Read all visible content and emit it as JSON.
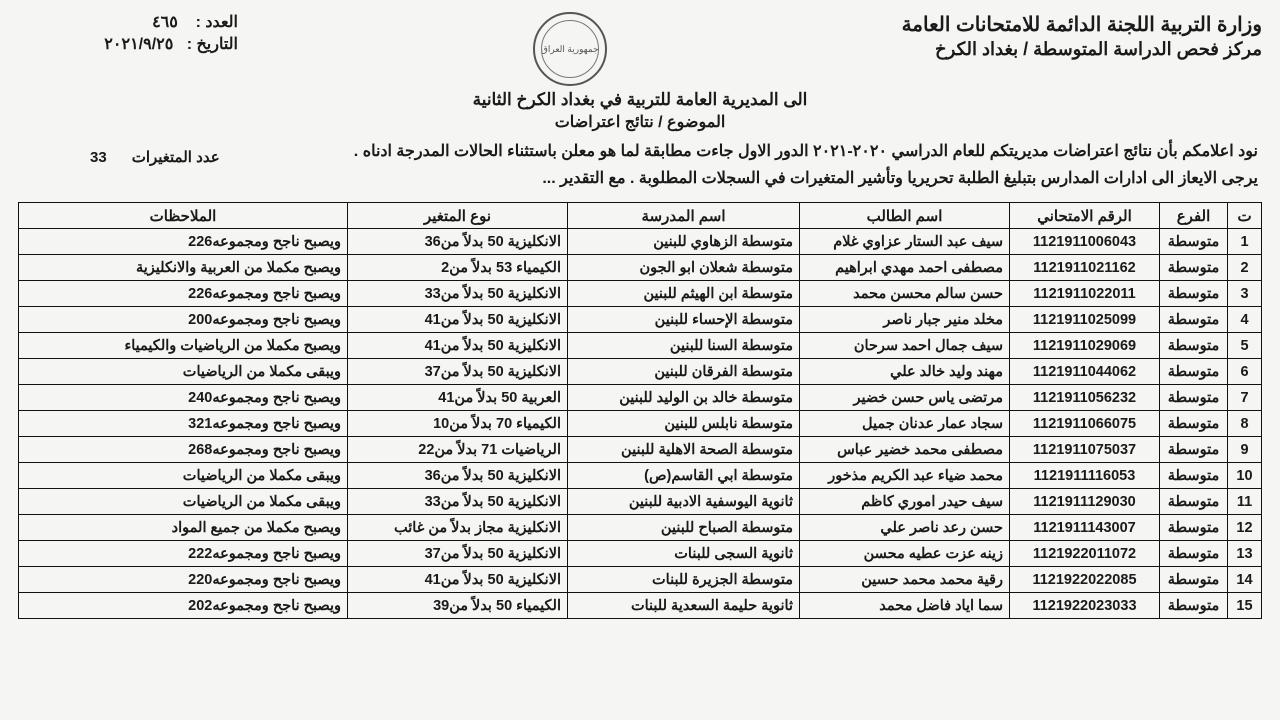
{
  "header": {
    "ministry": "وزارة التربية اللجنة الدائمة للامتحانات العامة",
    "center": "مركز فحص الدراسة المتوسطة / بغداد الكرخ",
    "number_label": "العدد :",
    "number_value": "٤٦٥",
    "date_label": "التاريخ :",
    "date_value": "٢٠٢١/٩/٢٥",
    "seal_text": "جمهورية العراق"
  },
  "subject": {
    "to": "الى المديرية العامة للتربية في بغداد الكرخ الثانية",
    "line": "الموضوع / نتائج اعتراضات",
    "count_label": "عدد المتغيرات",
    "count_value": "33"
  },
  "body": {
    "p1": "نود اعلامكم بأن نتائج اعتراضات مديريتكم للعام الدراسي ٢٠٢٠-٢٠٢١ الدور الاول جاءت مطابقة لما هو معلن باستثناء الحالات المدرجة ادناه .",
    "p2": "يرجى الايعاز الى ادارات المدارس بتبليغ الطلبة تحريريا وتأشير المتغيرات في السجلات المطلوبة .   مع التقدير ..."
  },
  "columns": [
    "ت",
    "الفرع",
    "الرقم الامتحاني",
    "اسم الطالب",
    "اسم المدرسة",
    "نوع المتغير",
    "الملاحظات"
  ],
  "rows": [
    {
      "i": "1",
      "br": "متوسطة",
      "exam": "1121911006043",
      "name": "سيف عبد الستار عزاوي غلام",
      "school": "متوسطة الزهاوي للبنين",
      "chg": "الانكليزية 50 بدلاً من36",
      "notes": "ويصبح ناجح ومجموعه226"
    },
    {
      "i": "2",
      "br": "متوسطة",
      "exam": "1121911021162",
      "name": "مصطفى احمد مهدي ابراهيم",
      "school": "متوسطة  شعلان ابو الجون",
      "chg": "الكيمياء 53 بدلاً من2",
      "notes": "ويصبح مكملا من العربية والانكليزية"
    },
    {
      "i": "3",
      "br": "متوسطة",
      "exam": "1121911022011",
      "name": "حسن سالم محسن محمد",
      "school": "متوسطة ابن الهيثم للبنين",
      "chg": "الانكليزية 50 بدلاً من33",
      "notes": "ويصبح ناجح ومجموعه226"
    },
    {
      "i": "4",
      "br": "متوسطة",
      "exam": "1121911025099",
      "name": "مخلد منير جبار ناصر",
      "school": "متوسطة الإحساء للبنين",
      "chg": "الانكليزية 50 بدلاً من41",
      "notes": "ويصبح ناجح ومجموعه200"
    },
    {
      "i": "5",
      "br": "متوسطة",
      "exam": "1121911029069",
      "name": "سيف جمال احمد سرحان",
      "school": "متوسطة السنا للبنين",
      "chg": "الانكليزية 50 بدلاً من41",
      "notes": "ويصبح مكملا من الرياضيات والكيمياء"
    },
    {
      "i": "6",
      "br": "متوسطة",
      "exam": "1121911044062",
      "name": "مهند وليد خالد علي",
      "school": "متوسطة الفرقان للبنين",
      "chg": "الانكليزية 50 بدلاً من37",
      "notes": "ويبقى مكملا من الرياضيات"
    },
    {
      "i": "7",
      "br": "متوسطة",
      "exam": "1121911056232",
      "name": "مرتضى ياس حسن خضير",
      "school": "متوسطة خالد بن الوليد للبنين",
      "chg": "العربية 50 بدلاً من41",
      "notes": "ويصبح ناجح ومجموعه240"
    },
    {
      "i": "8",
      "br": "متوسطة",
      "exam": "1121911066075",
      "name": "سجاد عمار عدنان جميل",
      "school": "متوسطة نابلس للبنين",
      "chg": "الكيمياء 70 بدلاً من10",
      "notes": "ويصبح ناجح ومجموعه321"
    },
    {
      "i": "9",
      "br": "متوسطة",
      "exam": "1121911075037",
      "name": "مصطفى محمد خضير عباس",
      "school": "متوسطة الصحة الاهلية للبنين",
      "chg": "الرياضيات 71 بدلاً من22",
      "notes": "ويصبح ناجح ومجموعه268"
    },
    {
      "i": "10",
      "br": "متوسطة",
      "exam": "1121911116053",
      "name": "محمد ضياء عبد الكريم مذخور",
      "school": "متوسطة ابي القاسم(ص)",
      "chg": "الانكليزية 50 بدلاً من36",
      "notes": "ويبقى مكملا من الرياضيات"
    },
    {
      "i": "11",
      "br": "متوسطة",
      "exam": "1121911129030",
      "name": "سيف حيدر اموري كاظم",
      "school": "ثانوية اليوسفية الادبية للبنين",
      "chg": "الانكليزية 50 بدلاً من33",
      "notes": "ويبقى مكملا من الرياضيات"
    },
    {
      "i": "12",
      "br": "متوسطة",
      "exam": "1121911143007",
      "name": "حسن رعد ناصر علي",
      "school": "متوسطة الصباح للبنين",
      "chg": "الانكليزية مجاز بدلاً من غائب",
      "notes": "ويصبح مكملا من جميع المواد"
    },
    {
      "i": "13",
      "br": "متوسطة",
      "exam": "1121922011072",
      "name": "زينه عزت عطيه محسن",
      "school": "ثانوية السجى للبنات",
      "chg": "الانكليزية 50 بدلاً من37",
      "notes": "ويصبح ناجح ومجموعه222"
    },
    {
      "i": "14",
      "br": "متوسطة",
      "exam": "1121922022085",
      "name": "رقية محمد محمد حسين",
      "school": "متوسطة الجزيرة للبنات",
      "chg": "الانكليزية 50 بدلاً من41",
      "notes": "ويصبح ناجح ومجموعه220"
    },
    {
      "i": "15",
      "br": "متوسطة",
      "exam": "1121922023033",
      "name": "سما اياد فاضل محمد",
      "school": "ثانوية حليمة السعدية للبنات",
      "chg": "الكيمياء 50 بدلاً من39",
      "notes": "ويصبح ناجح ومجموعه202"
    }
  ],
  "style": {
    "bg": "#f5f5f3",
    "border": "#111111",
    "text": "#1a1a1a",
    "header_fontsize": 20,
    "cell_fontsize": 14.5
  }
}
